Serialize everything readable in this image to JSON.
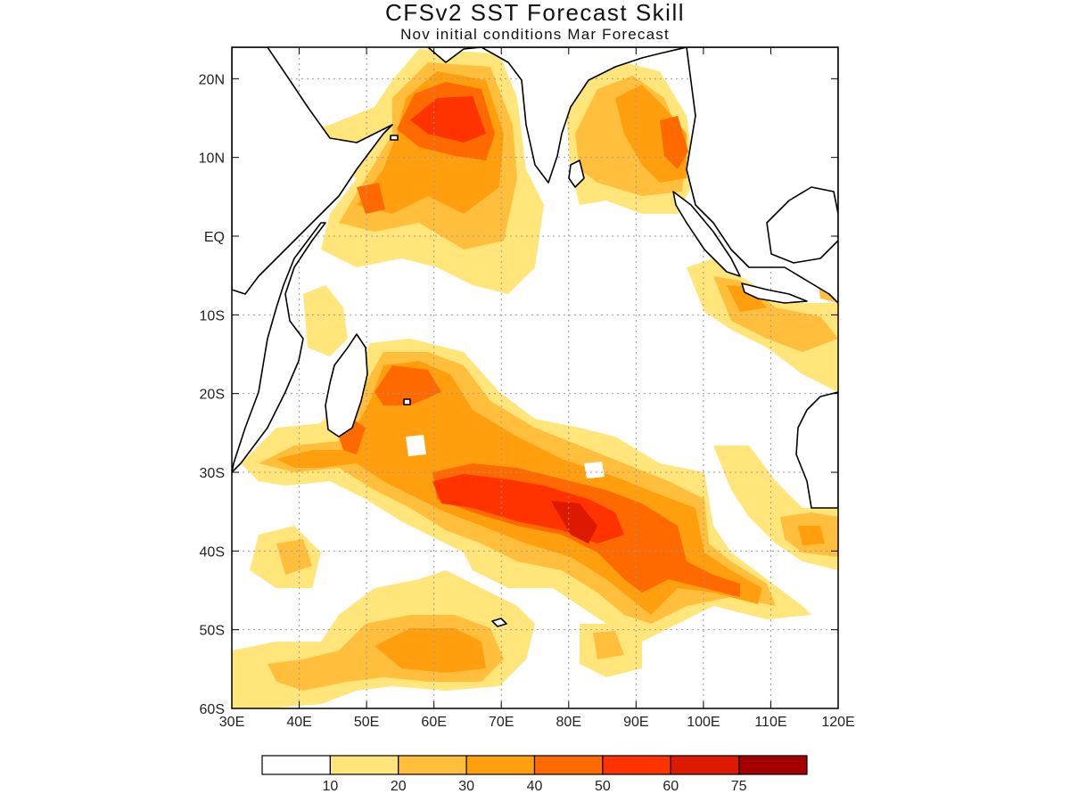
{
  "title": "CFSv2 SST Forecast Skill",
  "subtitle": "Nov initial conditions  Mar Forecast",
  "map": {
    "lon_range": [
      30,
      120
    ],
    "lat_range": [
      -60,
      24
    ],
    "lon_ticks": [
      30,
      40,
      50,
      60,
      70,
      80,
      90,
      100,
      110,
      120
    ],
    "lon_labels": [
      "30E",
      "40E",
      "50E",
      "60E",
      "70E",
      "80E",
      "90E",
      "100E",
      "110E",
      "120E"
    ],
    "lat_ticks": [
      20,
      10,
      0,
      -10,
      -20,
      -30,
      -40,
      -50,
      -60
    ],
    "lat_labels": [
      "20N",
      "10N",
      "EQ",
      "10S",
      "20S",
      "30S",
      "40S",
      "50S",
      "60S"
    ],
    "grid": "dotted"
  },
  "colorbar": {
    "levels": [
      "10",
      "20",
      "30",
      "40",
      "50",
      "60",
      "75"
    ],
    "colors": [
      "#ffffff",
      "#ffe57a",
      "#ffbf3c",
      "#ff9f0d",
      "#ff6a00",
      "#ff3300",
      "#dd1a00",
      "#a50000"
    ]
  }
}
